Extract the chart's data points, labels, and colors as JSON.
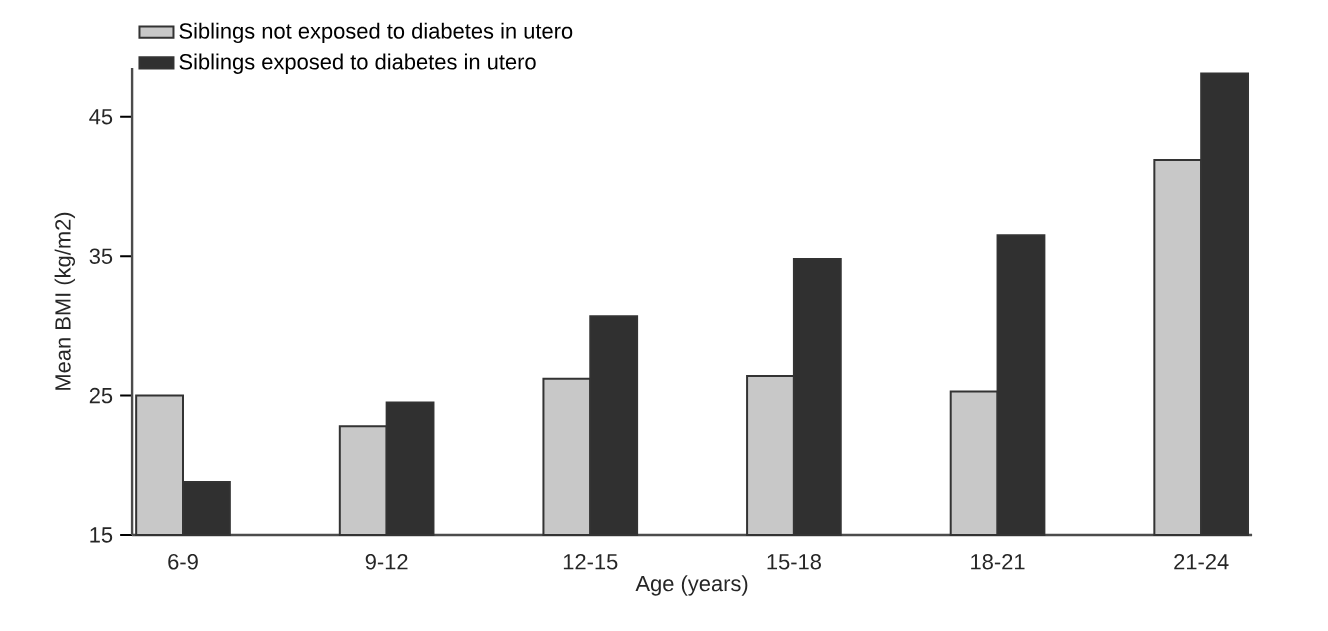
{
  "chart_data": {
    "type": "bar",
    "xlabel": "Age (years)",
    "ylabel": "Mean BMI (kg/m2)",
    "categories": [
      "6-9",
      "9-12",
      "12-15",
      "15-18",
      "18-21",
      "21-24"
    ],
    "series": [
      {
        "name": "Siblings not exposed to diabetes in utero",
        "color": "#c8c8c8",
        "values": [
          25.0,
          22.8,
          26.2,
          26.4,
          25.3,
          41.9
        ]
      },
      {
        "name": "Siblings exposed to diabetes in utero",
        "color": "#303030",
        "values": [
          18.8,
          24.5,
          30.7,
          34.8,
          36.5,
          48.1
        ]
      }
    ],
    "ylim": [
      15,
      48.5
    ],
    "yticks": [
      15,
      25,
      35,
      45
    ],
    "grid": false,
    "legend": "top left"
  }
}
